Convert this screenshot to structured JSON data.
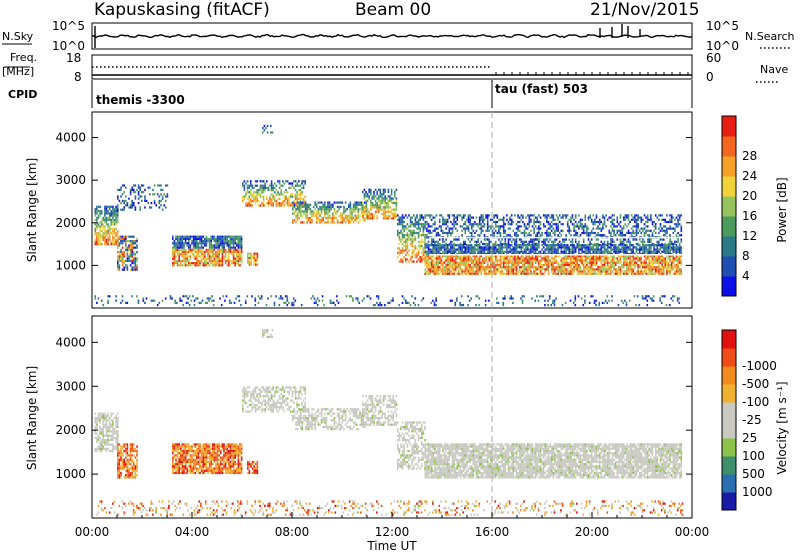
{
  "header": {
    "station": "Kapuskasing (fitACF)",
    "beam": "Beam 00",
    "date": "21/Nov/2015"
  },
  "left_labels": {
    "nsky": "N.Sky",
    "freq": "Freq.",
    "mhz": "[MHz]",
    "cpid": "CPID"
  },
  "right_labels": {
    "nsearch": "N.Search",
    "nave": "Nave"
  },
  "chart_data": [
    {
      "type": "line",
      "panel": "noise",
      "yticks_left": [
        "10^5",
        "10^0"
      ],
      "yticks_right": [
        "10^5",
        "10^0"
      ]
    },
    {
      "type": "line",
      "panel": "frequency",
      "yticks_left": [
        "18",
        "8"
      ],
      "yticks_right": [
        "60",
        "0"
      ],
      "series": [
        {
          "name": "Freq.",
          "value": 10.5,
          "range": [
            8,
            18
          ]
        },
        {
          "name": "Nave",
          "value": 28,
          "range": [
            0,
            60
          ]
        }
      ]
    },
    {
      "type": "table",
      "panel": "cpid",
      "segments": [
        {
          "label": "themis -3300",
          "start": 0,
          "end": 16
        },
        {
          "label": "tau (fast) 503",
          "start": 16,
          "end": 24
        }
      ]
    },
    {
      "type": "heatmap",
      "panel": "power",
      "ylabel": "Slant Range [km]",
      "ylim": [
        0,
        4600
      ],
      "yticks": [
        1000,
        2000,
        3000,
        4000
      ],
      "xlim": [
        0,
        24
      ],
      "colorbar": {
        "label": "Power [dB]",
        "ticks": [
          "4",
          "8",
          "12",
          "16",
          "20",
          "24",
          "28"
        ],
        "colors": [
          "#0b10e6",
          "#1f4fb2",
          "#2a7a8a",
          "#4c9a5c",
          "#94c45b",
          "#f2d23b",
          "#f5a028",
          "#f2661e",
          "#e81e12"
        ]
      }
    },
    {
      "type": "heatmap",
      "panel": "velocity",
      "ylabel": "Slant Range [km]",
      "ylim": [
        0,
        4600
      ],
      "yticks": [
        1000,
        2000,
        3000,
        4000
      ],
      "xlim": [
        0,
        24
      ],
      "xlabel": "Time UT",
      "xticks": [
        "00:00",
        "04:00",
        "08:00",
        "12:00",
        "16:00",
        "20:00",
        "00:00"
      ],
      "colorbar": {
        "label": "Velocity [m s⁻¹]",
        "ticks": [
          "1000",
          "500",
          "100",
          "25",
          "-25",
          "-100",
          "-500",
          "-1000"
        ],
        "colors": [
          "#1a1aa6",
          "#2a6fb0",
          "#3f8f6c",
          "#8cc24a",
          "#c9c9c1",
          "#c9c9c1",
          "#f0b030",
          "#f28a1e",
          "#ee4d18",
          "#e21010"
        ]
      }
    }
  ]
}
